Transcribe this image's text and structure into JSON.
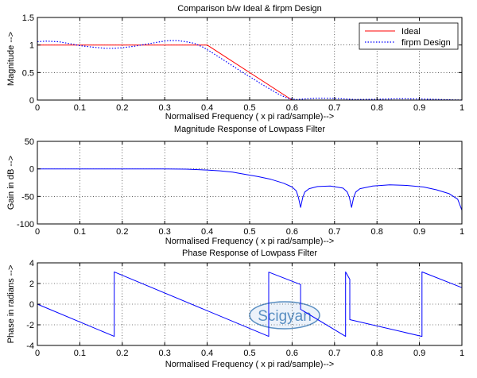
{
  "watermark": "Scigyan",
  "colors": {
    "ideal": "#ff0000",
    "design": "#0000ff",
    "watermark": "#5a8fc2"
  },
  "chart_data": [
    {
      "type": "line",
      "title": "Comparison b/w Ideal & firpm Design",
      "xlabel": "Normalised Frequency ( x pi rad/sample)-->",
      "ylabel": "Magnitude -->",
      "xlim": [
        0,
        1
      ],
      "ylim": [
        0,
        1.5
      ],
      "grid": true,
      "xticks": [
        "0",
        "0.1",
        "0.2",
        "0.3",
        "0.4",
        "0.5",
        "0.6",
        "0.7",
        "0.8",
        "0.9",
        "1"
      ],
      "yticks": [
        "0",
        "0.5",
        "1",
        "1.5"
      ],
      "legend": {
        "position": "top-right",
        "entries": [
          "Ideal",
          "firpm Design"
        ]
      },
      "series": [
        {
          "name": "Ideal",
          "style": "solid",
          "color": "#ff0000",
          "x": [
            0,
            0.4,
            0.6,
            1
          ],
          "y": [
            1,
            1,
            0,
            0
          ]
        },
        {
          "name": "firpm Design",
          "style": "dotted",
          "color": "#0000ff",
          "x": [
            0,
            0.02,
            0.05,
            0.08,
            0.1,
            0.13,
            0.16,
            0.18,
            0.2,
            0.23,
            0.26,
            0.29,
            0.31,
            0.33,
            0.35,
            0.37,
            0.39,
            0.41,
            0.43,
            0.45,
            0.47,
            0.49,
            0.51,
            0.53,
            0.55,
            0.57,
            0.59,
            0.61,
            0.63,
            0.66,
            0.7,
            0.75,
            0.8,
            0.85,
            0.9,
            0.95,
            1
          ],
          "y": [
            1.06,
            1.07,
            1.06,
            1.02,
            0.99,
            0.96,
            0.94,
            0.94,
            0.95,
            0.98,
            1.02,
            1.06,
            1.08,
            1.08,
            1.06,
            1.03,
            0.96,
            0.87,
            0.77,
            0.67,
            0.57,
            0.47,
            0.38,
            0.28,
            0.19,
            0.1,
            0.03,
            0.01,
            0.02,
            0.035,
            0.03,
            0.01,
            0.015,
            0.025,
            0.02,
            0.01,
            0
          ]
        }
      ]
    },
    {
      "type": "line",
      "title": "Magnitude Response of Lowpass Filter",
      "xlabel": "Normalised Frequency ( x pi rad/sample)-->",
      "ylabel": "Gain in dB -->",
      "xlim": [
        0,
        1
      ],
      "ylim": [
        -100,
        50
      ],
      "grid": true,
      "xticks": [
        "0",
        "0.1",
        "0.2",
        "0.3",
        "0.4",
        "0.5",
        "0.6",
        "0.7",
        "0.8",
        "0.9",
        "1"
      ],
      "yticks": [
        "-100",
        "-50",
        "0",
        "50"
      ],
      "series": [
        {
          "name": "Gain",
          "style": "solid",
          "color": "#0000ff",
          "x": [
            0,
            0.1,
            0.2,
            0.3,
            0.35,
            0.4,
            0.43,
            0.46,
            0.49,
            0.52,
            0.55,
            0.58,
            0.6,
            0.61,
            0.615,
            0.62,
            0.625,
            0.63,
            0.64,
            0.66,
            0.69,
            0.72,
            0.73,
            0.735,
            0.74,
            0.745,
            0.75,
            0.76,
            0.79,
            0.83,
            0.87,
            0.91,
            0.94,
            0.97,
            0.99,
            1
          ],
          "y": [
            0,
            0,
            0,
            0,
            -0.5,
            -2,
            -3.5,
            -6,
            -10,
            -14,
            -19,
            -26,
            -33,
            -40,
            -52,
            -70,
            -52,
            -42,
            -36,
            -32,
            -31,
            -35,
            -42,
            -52,
            -70,
            -52,
            -42,
            -36,
            -31,
            -29,
            -30,
            -33,
            -38,
            -45,
            -55,
            -75
          ]
        }
      ]
    },
    {
      "type": "line",
      "title": "Phase Response of Lowpass Filter",
      "xlabel": "Normalised Frequency ( x pi rad/sample)-->",
      "ylabel": "Phase in radians -->",
      "xlim": [
        0,
        1
      ],
      "ylim": [
        -4,
        4
      ],
      "grid": true,
      "xticks": [
        "0",
        "0.1",
        "0.2",
        "0.3",
        "0.4",
        "0.5",
        "0.6",
        "0.7",
        "0.8",
        "0.9",
        "1"
      ],
      "yticks": [
        "-4",
        "-2",
        "0",
        "2",
        "4"
      ],
      "series": [
        {
          "name": "Phase",
          "style": "solid",
          "color": "#0000ff",
          "x": [
            0,
            0.181,
            0.181,
            0.545,
            0.545,
            0.62,
            0.62,
            0.726,
            0.726,
            0.736,
            0.736,
            0.906,
            0.906,
            1
          ],
          "y": [
            0,
            -3.12,
            3.12,
            -3.12,
            3.1,
            1.9,
            -0.5,
            -3.12,
            3.12,
            2.4,
            -1.5,
            -3.12,
            3.12,
            1.6
          ]
        }
      ]
    }
  ]
}
